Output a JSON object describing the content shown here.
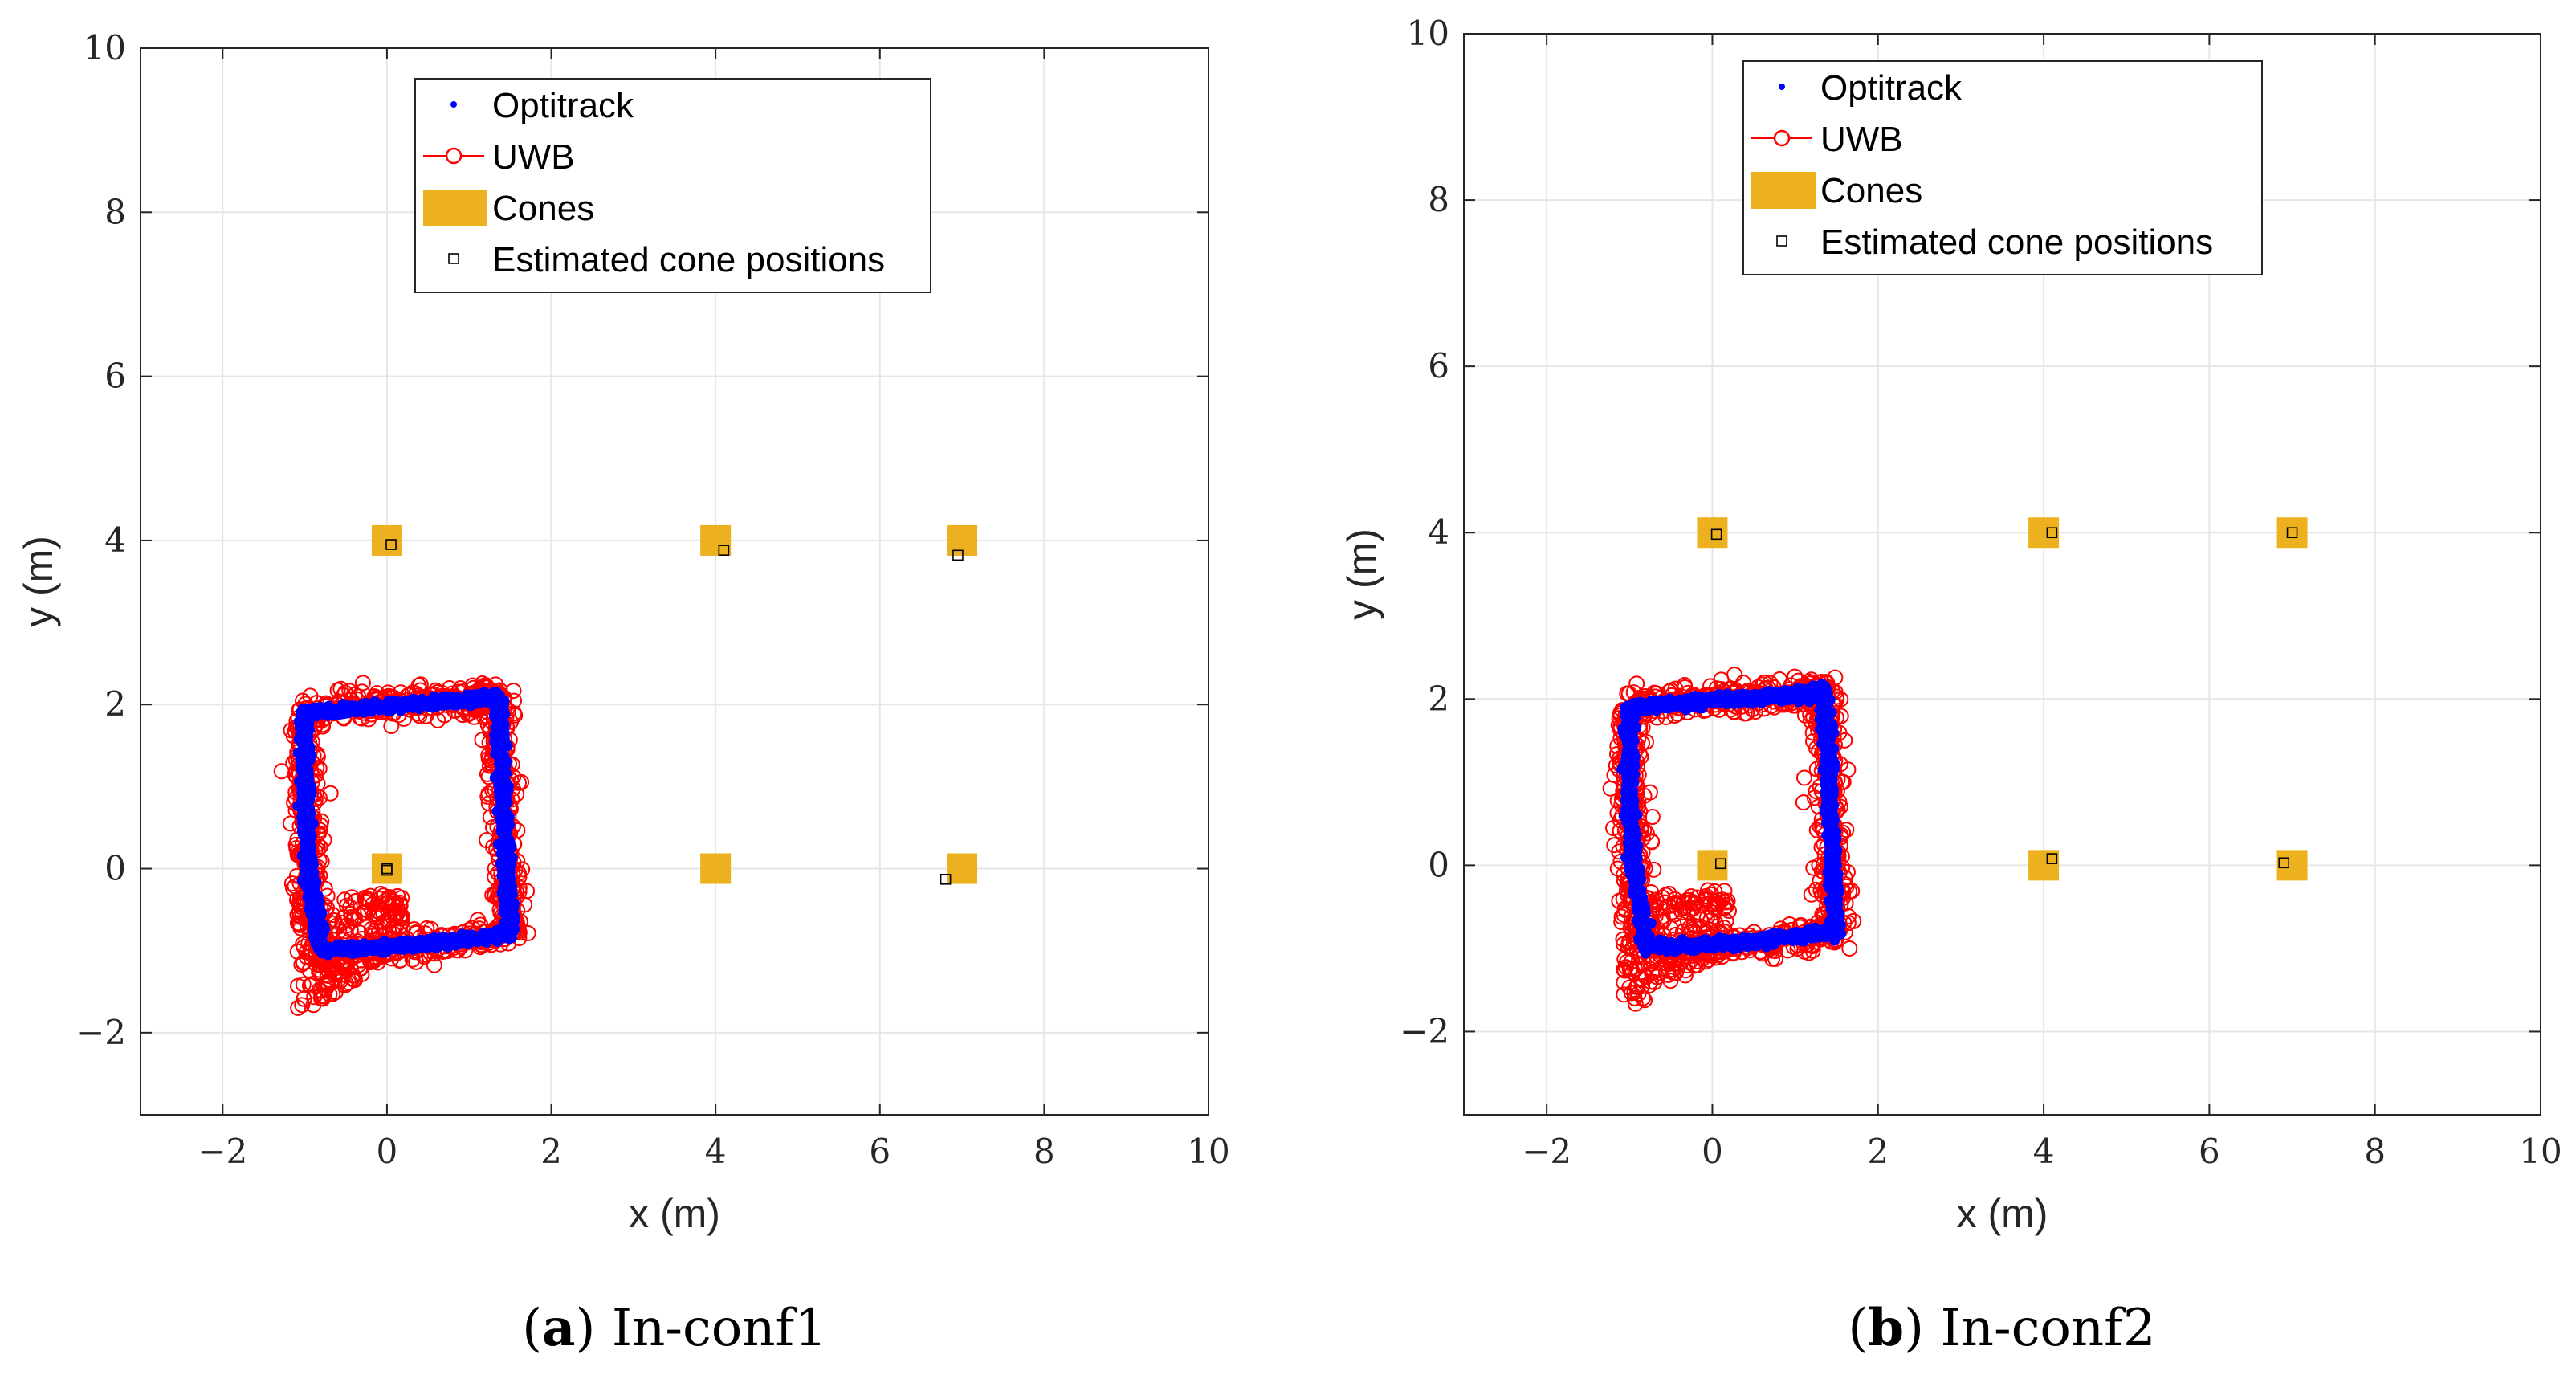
{
  "chart_data": [
    {
      "type": "scatter",
      "caption": {
        "label": "a",
        "text": "In-conf1"
      },
      "xlabel": "x (m)",
      "ylabel": "y (m)",
      "xlim": [
        -3,
        10
      ],
      "ylim": [
        -3,
        10
      ],
      "xticks": [
        -2,
        0,
        2,
        4,
        6,
        8,
        10
      ],
      "yticks": [
        -2,
        0,
        2,
        4,
        6,
        8,
        10
      ],
      "grid": true,
      "legend": {
        "placement": "top-center",
        "entries": [
          "Optitrack",
          "UWB",
          "Cones",
          "Estimated cone positions"
        ]
      },
      "colors": {
        "optitrack": "#0000ff",
        "uwb": "#ff0000",
        "cones": "#edb120",
        "estimated": "#000000"
      },
      "series": [
        {
          "name": "Optitrack",
          "marker": "dot",
          "path": [
            [
              -1.0,
              1.9
            ],
            [
              0.0,
              1.98
            ],
            [
              1.0,
              2.05
            ],
            [
              1.35,
              2.1
            ],
            [
              1.4,
              1.2
            ],
            [
              1.45,
              0.0
            ],
            [
              1.5,
              -0.8
            ],
            [
              0.5,
              -0.92
            ],
            [
              -0.8,
              -1.0
            ],
            [
              -0.95,
              0.0
            ],
            [
              -1.0,
              1.0
            ],
            [
              -1.0,
              1.9
            ]
          ]
        },
        {
          "name": "UWB",
          "marker": "circle",
          "path": [
            [
              -1.0,
              1.9
            ],
            [
              0.0,
              2.0
            ],
            [
              1.0,
              2.05
            ],
            [
              1.35,
              2.1
            ],
            [
              1.4,
              1.2
            ],
            [
              1.45,
              0.0
            ],
            [
              1.5,
              -0.8
            ],
            [
              0.5,
              -0.95
            ],
            [
              -0.8,
              -1.05
            ],
            [
              -0.95,
              0.0
            ],
            [
              -1.0,
              1.0
            ],
            [
              -1.0,
              1.9
            ]
          ],
          "lower_left_cluster": {
            "x": [
              -1.1,
              0.2
            ],
            "y": [
              -1.8,
              -0.3
            ]
          }
        },
        {
          "name": "Cones",
          "marker": "filled-square",
          "x": [
            0,
            4,
            7,
            0,
            4,
            7
          ],
          "y": [
            4,
            4,
            4,
            0,
            0,
            0
          ]
        },
        {
          "name": "Estimated cone positions",
          "marker": "open-square",
          "x": [
            0.05,
            4.1,
            6.95,
            0.0,
            0.0,
            6.8
          ],
          "y": [
            3.95,
            3.88,
            3.82,
            0.0,
            -0.02,
            -0.13
          ]
        }
      ]
    },
    {
      "type": "scatter",
      "caption": {
        "label": "b",
        "text": "In-conf2"
      },
      "xlabel": "x (m)",
      "ylabel": "y (m)",
      "xlim": [
        -3,
        10
      ],
      "ylim": [
        -3,
        10
      ],
      "xticks": [
        -2,
        0,
        2,
        4,
        6,
        8,
        10
      ],
      "yticks": [
        -2,
        0,
        2,
        4,
        6,
        8,
        10
      ],
      "grid": true,
      "legend": {
        "placement": "top-center",
        "entries": [
          "Optitrack",
          "UWB",
          "Cones",
          "Estimated cone positions"
        ]
      },
      "colors": {
        "optitrack": "#0000ff",
        "uwb": "#ff0000",
        "cones": "#edb120",
        "estimated": "#000000"
      },
      "series": [
        {
          "name": "Optitrack",
          "marker": "dot",
          "path": [
            [
              -1.0,
              1.9
            ],
            [
              0.0,
              1.98
            ],
            [
              1.0,
              2.05
            ],
            [
              1.35,
              2.1
            ],
            [
              1.4,
              1.2
            ],
            [
              1.45,
              0.0
            ],
            [
              1.5,
              -0.8
            ],
            [
              0.5,
              -0.92
            ],
            [
              -0.8,
              -1.0
            ],
            [
              -0.95,
              0.0
            ],
            [
              -1.0,
              1.0
            ],
            [
              -1.0,
              1.9
            ]
          ]
        },
        {
          "name": "UWB",
          "marker": "circle",
          "path": [
            [
              -1.0,
              1.9
            ],
            [
              0.0,
              2.0
            ],
            [
              1.0,
              2.05
            ],
            [
              1.35,
              2.1
            ],
            [
              1.4,
              1.2
            ],
            [
              1.45,
              0.0
            ],
            [
              1.5,
              -0.8
            ],
            [
              0.5,
              -0.95
            ],
            [
              -0.8,
              -1.05
            ],
            [
              -0.95,
              0.0
            ],
            [
              -1.0,
              1.0
            ],
            [
              -1.0,
              1.9
            ]
          ],
          "lower_left_cluster": {
            "x": [
              -1.1,
              0.2
            ],
            "y": [
              -1.8,
              -0.3
            ]
          }
        },
        {
          "name": "Cones",
          "marker": "filled-square",
          "x": [
            0,
            4,
            7,
            0,
            4,
            7
          ],
          "y": [
            4,
            4,
            4,
            0,
            0,
            0
          ]
        },
        {
          "name": "Estimated cone positions",
          "marker": "open-square",
          "x": [
            0.05,
            4.1,
            7.0,
            0.1,
            4.1,
            6.9
          ],
          "y": [
            3.98,
            4.0,
            4.0,
            0.02,
            0.08,
            0.03
          ]
        }
      ]
    }
  ]
}
